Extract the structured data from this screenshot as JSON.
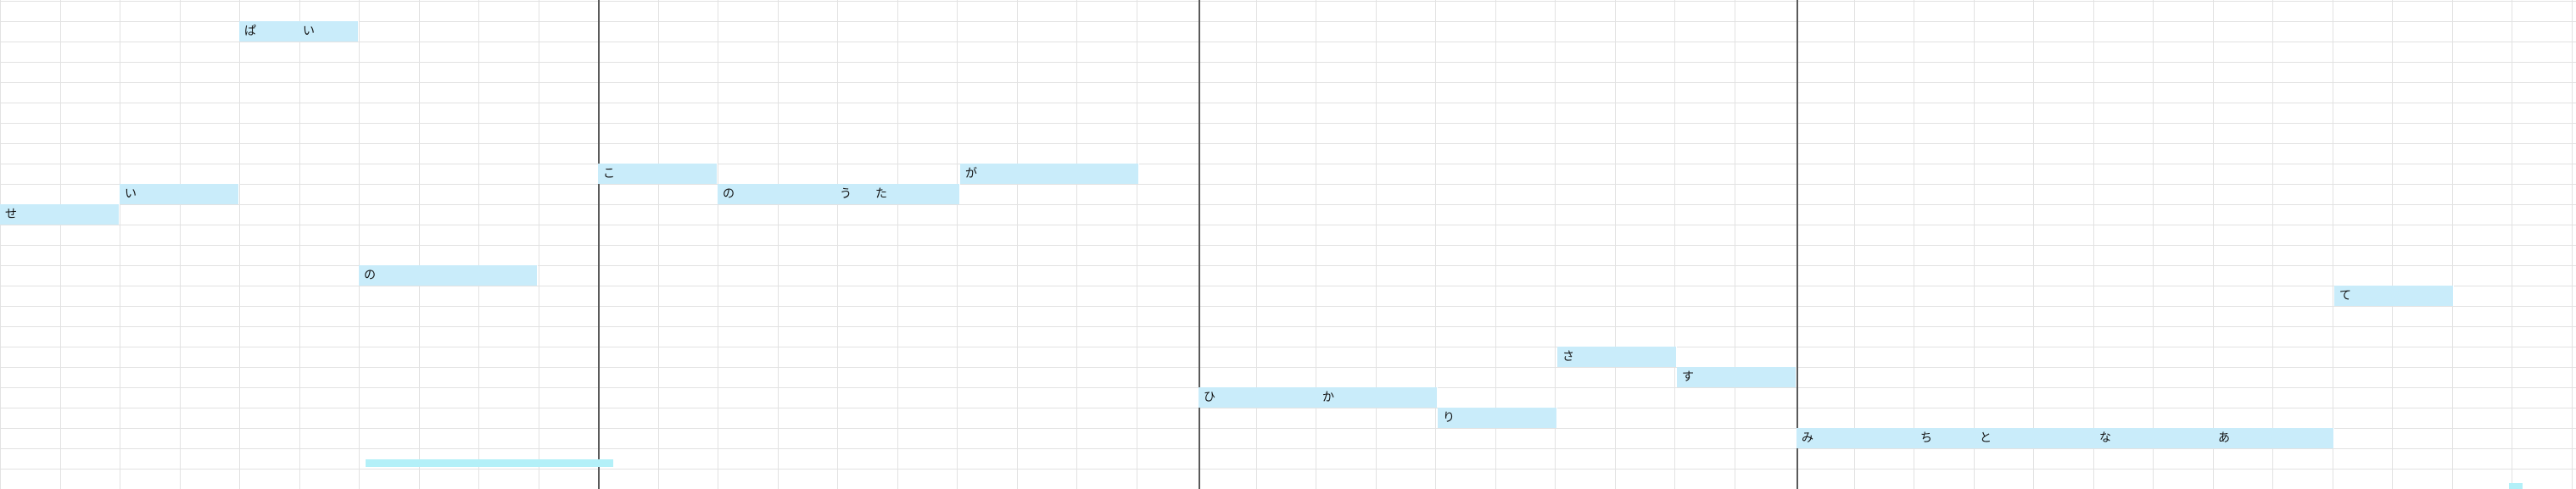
{
  "colors": {
    "background": "#ffffff",
    "grid": "#e2e2e2",
    "bar_line": "#5a5a5a",
    "note": "#c9ecfa",
    "selection": "#b3f0f8",
    "lyric_text": "#111111"
  },
  "notes": [
    {
      "syllables": [
        {
          "text": "ぱ"
        },
        {
          "text": "い"
        }
      ]
    },
    {
      "syllables": [
        {
          "text": "い"
        }
      ]
    },
    {
      "syllables": [
        {
          "text": "せ"
        }
      ]
    },
    {
      "syllables": [
        {
          "text": "の"
        }
      ]
    },
    {
      "syllables": [
        {
          "text": "こ"
        }
      ]
    },
    {
      "syllables": [
        {
          "text": "の"
        },
        {
          "text": "う"
        },
        {
          "text": "た"
        }
      ]
    },
    {
      "syllables": [
        {
          "text": "が"
        }
      ]
    },
    {
      "syllables": [
        {
          "text": "ひ"
        },
        {
          "text": "か"
        }
      ]
    },
    {
      "syllables": [
        {
          "text": "り"
        }
      ]
    },
    {
      "syllables": [
        {
          "text": "さ"
        }
      ]
    },
    {
      "syllables": [
        {
          "text": "す"
        }
      ]
    },
    {
      "syllables": [
        {
          "text": "み"
        },
        {
          "text": "ち"
        },
        {
          "text": "と"
        },
        {
          "text": "な"
        },
        {
          "text": "あ"
        }
      ]
    },
    {
      "syllables": [
        {
          "text": "て"
        }
      ]
    }
  ]
}
